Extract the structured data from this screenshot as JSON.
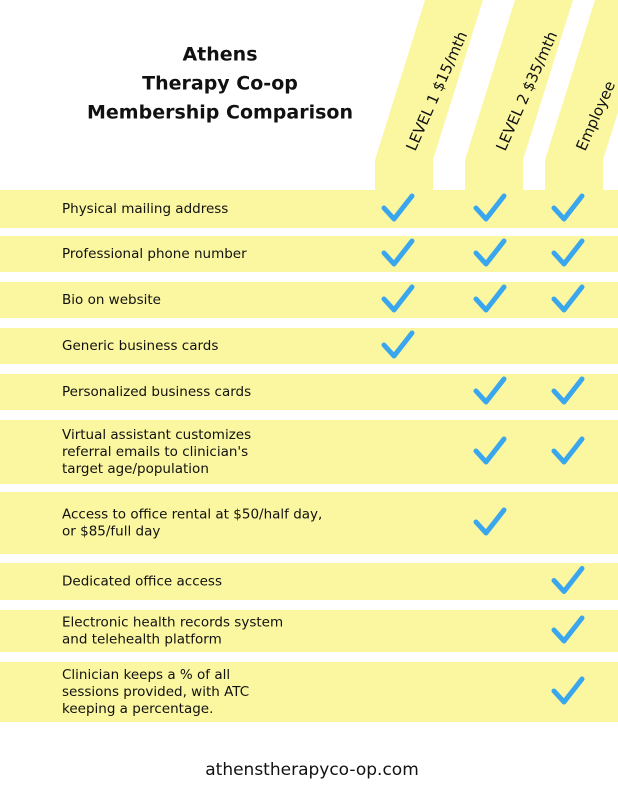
{
  "header": {
    "title": [
      "Athens",
      "Therapy Co-op",
      "Membership Comparison"
    ],
    "columns": [
      "LEVEL 1 $15/mth",
      "LEVEL 2 $35/mth",
      "Employee"
    ]
  },
  "table": {
    "rows": [
      {
        "feature": [
          "Physical mailing address"
        ],
        "checks": [
          true,
          true,
          true
        ]
      },
      {
        "feature": [
          "Professional phone number"
        ],
        "checks": [
          true,
          true,
          true
        ]
      },
      {
        "feature": [
          "Bio on website"
        ],
        "checks": [
          true,
          true,
          true
        ]
      },
      {
        "feature": [
          "Generic business cards"
        ],
        "checks": [
          true,
          false,
          false
        ]
      },
      {
        "feature": [
          "Personalized business cards"
        ],
        "checks": [
          false,
          true,
          true
        ]
      },
      {
        "feature": [
          "Virtual assistant customizes",
          "referral emails to clinician's",
          "target age/population"
        ],
        "checks": [
          false,
          true,
          true
        ]
      },
      {
        "feature": [
          "Access to office rental at $50/half day,",
          "or $85/full day"
        ],
        "checks": [
          false,
          true,
          false
        ]
      },
      {
        "feature": [
          "Dedicated office access"
        ],
        "checks": [
          false,
          false,
          true
        ]
      },
      {
        "feature": [
          "Electronic health records system",
          "and telehealth platform"
        ],
        "checks": [
          false,
          false,
          true
        ]
      },
      {
        "feature": [
          "Clinician keeps a % of all",
          "sessions provided, with ATC",
          "keeping a percentage."
        ],
        "checks": [
          false,
          false,
          true
        ]
      }
    ]
  },
  "footer": {
    "url": "athenstherapyco-op.com"
  }
}
